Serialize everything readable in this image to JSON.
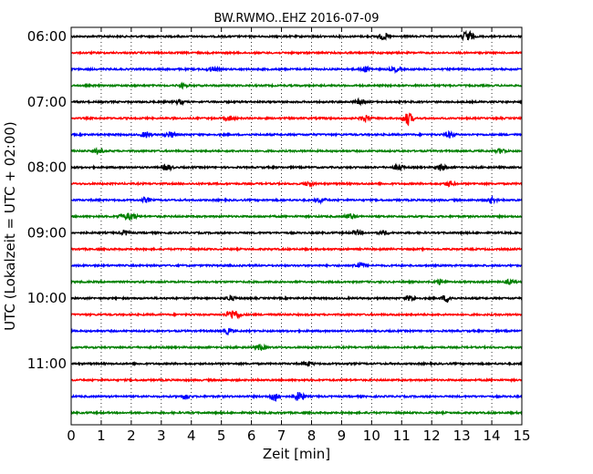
{
  "chart_data": {
    "type": "line",
    "title": "BW.RWMO..EHZ 2016-07-09",
    "xlabel": "Zeit  [min]",
    "ylabel": "UTC (Lokalzeit = UTC + 02:00)",
    "xlim": [
      0,
      15
    ],
    "x_ticks": [
      "0",
      "1",
      "2",
      "3",
      "4",
      "5",
      "6",
      "7",
      "8",
      "9",
      "10",
      "11",
      "12",
      "13",
      "14",
      "15"
    ],
    "y_tick_labels": [
      "06:00",
      "07:00",
      "08:00",
      "09:00",
      "10:00",
      "11:00"
    ],
    "grid": "vertical dotted",
    "colors": [
      "#000000",
      "#ff0000",
      "#0000ff",
      "#008000"
    ],
    "series": [
      {
        "start": "06:00",
        "events": [
          {
            "t": 10.4,
            "amp": 0.5
          },
          {
            "t": 13.2,
            "amp": 1.0
          }
        ]
      },
      {
        "start": "06:15",
        "events": []
      },
      {
        "start": "06:30",
        "events": [
          {
            "t": 4.7,
            "amp": 0.35
          },
          {
            "t": 9.8,
            "amp": 0.4
          },
          {
            "t": 10.8,
            "amp": 0.35
          }
        ]
      },
      {
        "start": "06:45",
        "events": [
          {
            "t": 3.7,
            "amp": 0.3
          }
        ]
      },
      {
        "start": "07:00",
        "events": [
          {
            "t": 3.6,
            "amp": 0.3
          },
          {
            "t": 9.6,
            "amp": 0.35
          }
        ]
      },
      {
        "start": "07:15",
        "events": [
          {
            "t": 5.3,
            "amp": 0.35
          },
          {
            "t": 9.8,
            "amp": 0.45
          },
          {
            "t": 11.2,
            "amp": 1.0
          }
        ]
      },
      {
        "start": "07:30",
        "events": [
          {
            "t": 2.5,
            "amp": 0.45
          },
          {
            "t": 3.3,
            "amp": 0.45
          },
          {
            "t": 12.6,
            "amp": 0.45
          }
        ]
      },
      {
        "start": "07:45",
        "events": [
          {
            "t": 0.9,
            "amp": 0.35
          },
          {
            "t": 14.3,
            "amp": 0.35
          }
        ]
      },
      {
        "start": "08:00",
        "events": [
          {
            "t": 3.2,
            "amp": 0.45
          },
          {
            "t": 10.9,
            "amp": 0.45
          },
          {
            "t": 12.3,
            "amp": 0.55
          }
        ]
      },
      {
        "start": "08:15",
        "events": [
          {
            "t": 7.9,
            "amp": 0.35
          },
          {
            "t": 12.6,
            "amp": 0.4
          }
        ]
      },
      {
        "start": "08:30",
        "events": [
          {
            "t": 2.5,
            "amp": 0.35
          },
          {
            "t": 8.3,
            "amp": 0.35
          },
          {
            "t": 14.0,
            "amp": 0.35
          }
        ]
      },
      {
        "start": "08:45",
        "events": [
          {
            "t": 1.7,
            "amp": 0.35
          },
          {
            "t": 2.0,
            "amp": 0.55
          },
          {
            "t": 9.3,
            "amp": 0.45
          }
        ]
      },
      {
        "start": "09:00",
        "events": [
          {
            "t": 1.8,
            "amp": 0.35
          },
          {
            "t": 9.5,
            "amp": 0.35
          },
          {
            "t": 10.4,
            "amp": 0.35
          }
        ]
      },
      {
        "start": "09:15",
        "events": []
      },
      {
        "start": "09:30",
        "events": [
          {
            "t": 9.6,
            "amp": 0.5
          }
        ]
      },
      {
        "start": "09:45",
        "events": [
          {
            "t": 12.3,
            "amp": 0.4
          },
          {
            "t": 14.6,
            "amp": 0.35
          }
        ]
      },
      {
        "start": "10:00",
        "events": [
          {
            "t": 5.3,
            "amp": 0.35
          },
          {
            "t": 11.3,
            "amp": 0.45
          },
          {
            "t": 12.5,
            "amp": 0.55
          }
        ]
      },
      {
        "start": "10:15",
        "events": [
          {
            "t": 5.3,
            "amp": 0.55
          },
          {
            "t": 5.5,
            "amp": 0.5
          }
        ]
      },
      {
        "start": "10:30",
        "events": [
          {
            "t": 5.2,
            "amp": 0.4
          }
        ]
      },
      {
        "start": "10:45",
        "events": [
          {
            "t": 6.3,
            "amp": 0.45
          }
        ]
      },
      {
        "start": "11:00",
        "events": [
          {
            "t": 7.9,
            "amp": 0.3
          }
        ]
      },
      {
        "start": "11:15",
        "events": []
      },
      {
        "start": "11:30",
        "events": [
          {
            "t": 3.8,
            "amp": 0.35
          },
          {
            "t": 6.8,
            "amp": 0.7
          },
          {
            "t": 7.6,
            "amp": 0.75
          }
        ]
      },
      {
        "start": "11:45",
        "events": []
      }
    ]
  }
}
